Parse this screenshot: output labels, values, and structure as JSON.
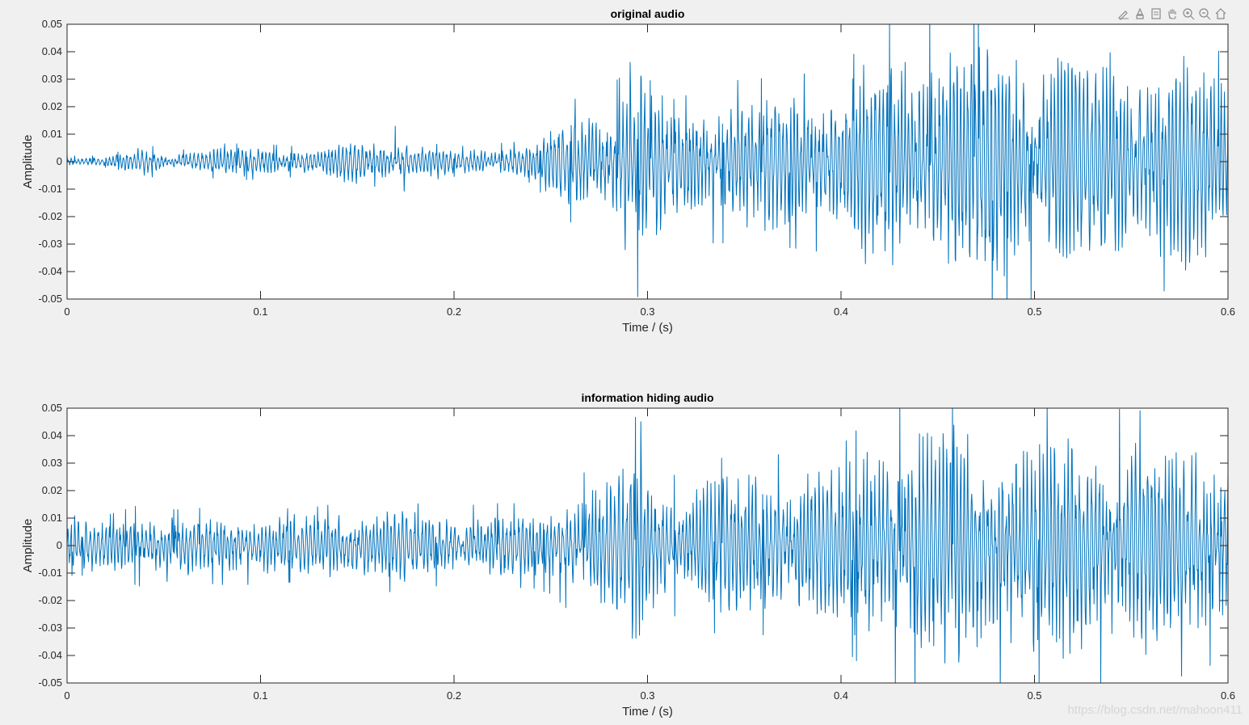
{
  "toolbar": {
    "items": [
      {
        "name": "edit-plot-icon"
      },
      {
        "name": "insert-brush-icon"
      },
      {
        "name": "data-tips-icon"
      },
      {
        "name": "pan-icon"
      },
      {
        "name": "zoom-in-icon"
      },
      {
        "name": "zoom-out-icon"
      },
      {
        "name": "home-icon"
      }
    ]
  },
  "watermark": "https://blog.csdn.net/mahoon411",
  "colors": {
    "line": "#0072BD",
    "axes_bg": "#ffffff",
    "figure_bg": "#f0f0f0"
  },
  "chart_data": [
    {
      "type": "line",
      "title": "original audio",
      "xlabel": "Time / (s)",
      "ylabel": "Amplitude",
      "xlim": [
        0,
        0.6
      ],
      "ylim": [
        -0.05,
        0.05
      ],
      "xticks": [
        0,
        0.1,
        0.2,
        0.3,
        0.4,
        0.5,
        0.6
      ],
      "xtick_labels": [
        "0",
        "0.1",
        "0.2",
        "0.3",
        "0.4",
        "0.5",
        "0.6"
      ],
      "yticks": [
        0.05,
        0.04,
        0.03,
        0.02,
        0.01,
        0,
        -0.01,
        -0.02,
        -0.03,
        -0.04,
        -0.05
      ],
      "ytick_labels": [
        "0.05",
        "0.04",
        "0.03",
        "0.02",
        "0.01",
        "0",
        "-0.01",
        "-0.02",
        "-0.03",
        "-0.04",
        "-0.05"
      ],
      "series": [
        {
          "name": "original audio",
          "envelope_t": [
            0,
            0.02,
            0.04,
            0.05,
            0.06,
            0.08,
            0.1,
            0.12,
            0.14,
            0.15,
            0.16,
            0.17,
            0.18,
            0.2,
            0.22,
            0.24,
            0.25,
            0.26,
            0.27,
            0.28,
            0.29,
            0.295,
            0.3,
            0.31,
            0.32,
            0.33,
            0.35,
            0.38,
            0.4,
            0.42,
            0.45,
            0.48,
            0.5,
            0.52,
            0.55,
            0.58,
            0.6
          ],
          "envelope_a": [
            0.002,
            0.002,
            0.006,
            0.004,
            0.004,
            0.006,
            0.006,
            0.005,
            0.007,
            0.011,
            0.008,
            0.012,
            0.007,
            0.005,
            0.006,
            0.007,
            0.014,
            0.02,
            0.023,
            0.025,
            0.03,
            0.045,
            0.028,
            0.02,
            0.022,
            0.027,
            0.027,
            0.029,
            0.031,
            0.045,
            0.048,
            0.048,
            0.046,
            0.045,
            0.044,
            0.042,
            0.035
          ]
        }
      ]
    },
    {
      "type": "line",
      "title": "information hiding audio",
      "xlabel": "Time / (s)",
      "ylabel": "Amplitude",
      "xlim": [
        0,
        0.6
      ],
      "ylim": [
        -0.05,
        0.05
      ],
      "xticks": [
        0,
        0.1,
        0.2,
        0.3,
        0.4,
        0.5,
        0.6
      ],
      "xtick_labels": [
        "0",
        "0.1",
        "0.2",
        "0.3",
        "0.4",
        "0.5",
        "0.6"
      ],
      "yticks": [
        0.05,
        0.04,
        0.03,
        0.02,
        0.01,
        0,
        -0.01,
        -0.02,
        -0.03,
        -0.04,
        -0.05
      ],
      "ytick_labels": [
        "0.05",
        "0.04",
        "0.03",
        "0.02",
        "0.01",
        "0",
        "-0.01",
        "-0.02",
        "-0.03",
        "-0.04",
        "-0.05"
      ],
      "series": [
        {
          "name": "information hiding audio",
          "envelope_t": [
            0,
            0.02,
            0.04,
            0.05,
            0.06,
            0.08,
            0.1,
            0.12,
            0.14,
            0.15,
            0.16,
            0.17,
            0.18,
            0.2,
            0.22,
            0.24,
            0.25,
            0.26,
            0.27,
            0.28,
            0.29,
            0.295,
            0.3,
            0.31,
            0.32,
            0.33,
            0.35,
            0.38,
            0.4,
            0.42,
            0.45,
            0.48,
            0.5,
            0.52,
            0.55,
            0.58,
            0.6
          ],
          "envelope_a": [
            0.01,
            0.01,
            0.014,
            0.012,
            0.012,
            0.013,
            0.013,
            0.012,
            0.014,
            0.015,
            0.014,
            0.016,
            0.014,
            0.013,
            0.014,
            0.014,
            0.016,
            0.022,
            0.025,
            0.027,
            0.032,
            0.046,
            0.03,
            0.023,
            0.024,
            0.029,
            0.029,
            0.031,
            0.033,
            0.046,
            0.048,
            0.048,
            0.047,
            0.046,
            0.045,
            0.043,
            0.037
          ]
        }
      ]
    }
  ]
}
